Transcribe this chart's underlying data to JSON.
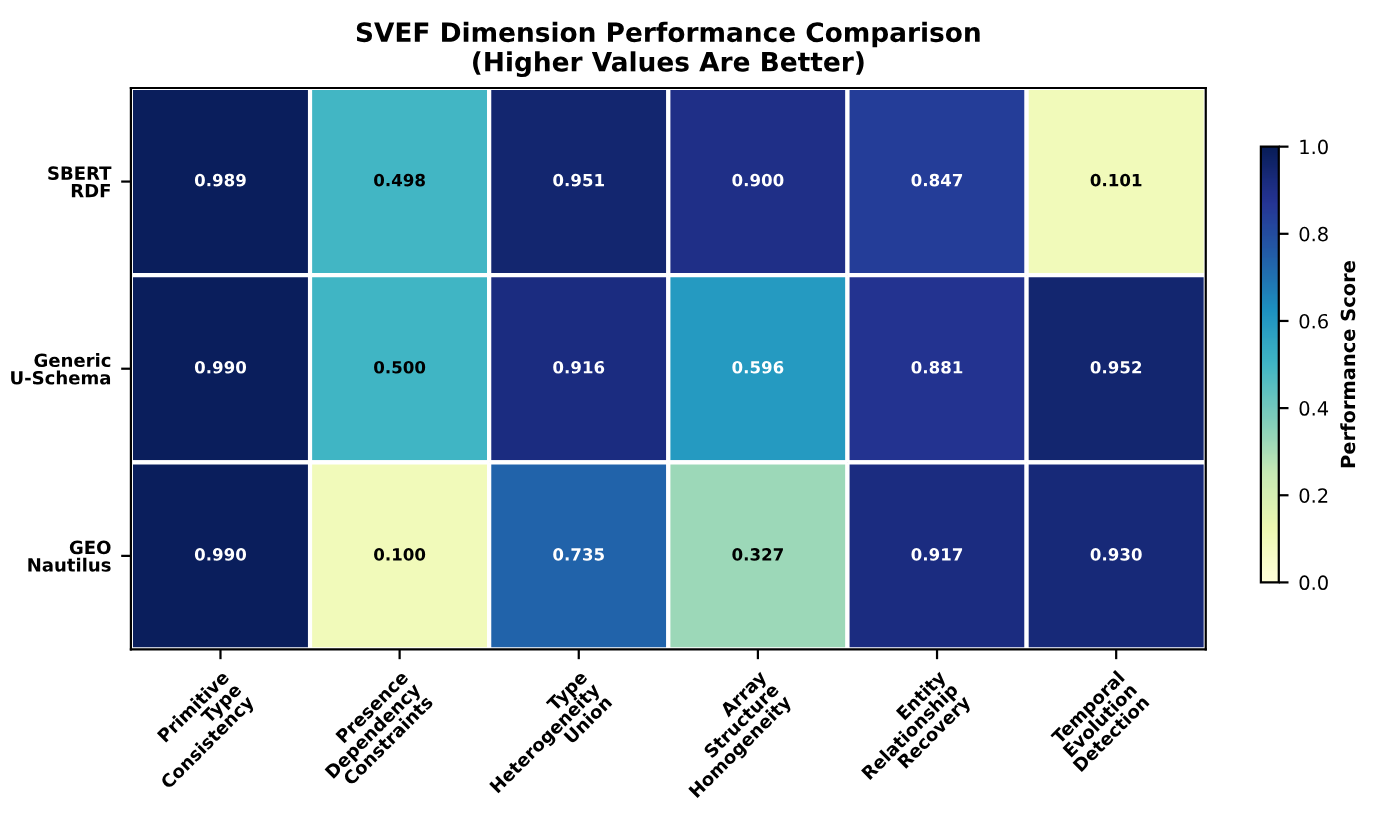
{
  "chart_data": {
    "type": "heatmap",
    "title": "SVEF Dimension Performance Comparison\n(Higher Values Are Better)",
    "categories": [
      "Primitive\nType\nConsistency",
      "Presence\nDependency\nConstraints",
      "Type\nHeterogeneity\nUnion",
      "Array\nStructure\nHomogeneity",
      "Entity\nRelationship\nRecovery",
      "Temporal\nEvolution\nDetection"
    ],
    "y_categories": [
      "SBERT\nRDF",
      "Generic\nU-Schema",
      "GEO\nNautilus"
    ],
    "cells": [
      [
        0.989,
        0.498,
        0.951,
        0.9,
        0.847,
        0.101
      ],
      [
        0.99,
        0.5,
        0.916,
        0.596,
        0.881,
        0.952
      ],
      [
        0.99,
        0.1,
        0.735,
        0.327,
        0.917,
        0.93
      ]
    ],
    "cell_labels": [
      [
        "0.989",
        "0.498",
        "0.951",
        "0.900",
        "0.847",
        "0.101"
      ],
      [
        "0.990",
        "0.500",
        "0.916",
        "0.596",
        "0.881",
        "0.952"
      ],
      [
        "0.990",
        "0.100",
        "0.735",
        "0.327",
        "0.917",
        "0.930"
      ]
    ],
    "clim": [
      0.0,
      1.0
    ],
    "cticks": [
      {
        "value": 0.0,
        "label": "0.0"
      },
      {
        "value": 0.2,
        "label": "0.2"
      },
      {
        "value": 0.4,
        "label": "0.4"
      },
      {
        "value": 0.6,
        "label": "0.6"
      },
      {
        "value": 0.8,
        "label": "0.8"
      },
      {
        "value": 1.0,
        "label": "1.0"
      }
    ],
    "clabel": "Performance Score"
  }
}
